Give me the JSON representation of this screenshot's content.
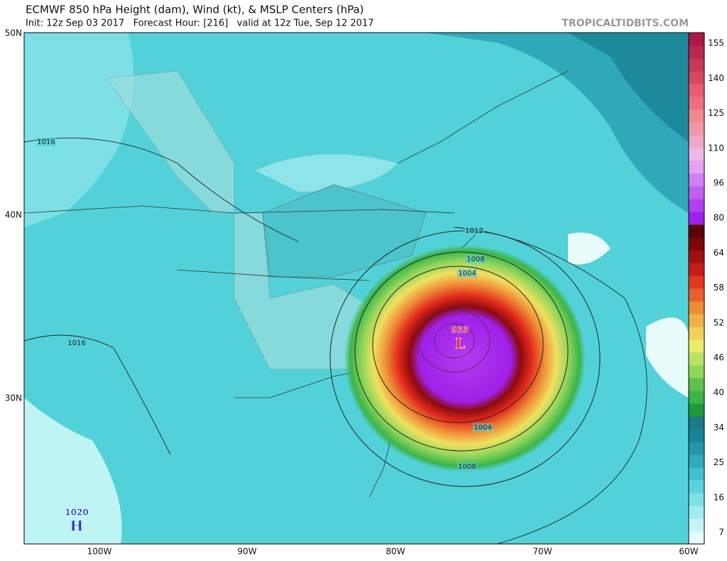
{
  "header": {
    "title": "ECMWF 850 hPa Height (dam), Wind (kt), & MSLP Centers (hPa)",
    "subtitle": "Init: 12z Sep 03 2017   Forecast Hour: [216]   valid at 12z Tue, Sep 12 2017",
    "site": "TROPICALTIDBITS.COM"
  },
  "map": {
    "lat_labels": [
      "50N",
      "40N",
      "30N"
    ],
    "lon_labels": [
      "100W",
      "90W",
      "80W",
      "70W",
      "60W"
    ],
    "contour_labels": [
      "1016",
      "1016",
      "1012",
      "1008",
      "1004",
      "1004",
      "1008"
    ],
    "centers": [
      {
        "value": "933",
        "symbol": "L"
      },
      {
        "value": "1020",
        "symbol": "H"
      }
    ]
  },
  "colorbar": {
    "ticks": [
      "7",
      "16",
      "25",
      "34",
      "40",
      "46",
      "52",
      "58",
      "64",
      "80",
      "96",
      "110",
      "125",
      "140",
      "155"
    ]
  }
}
